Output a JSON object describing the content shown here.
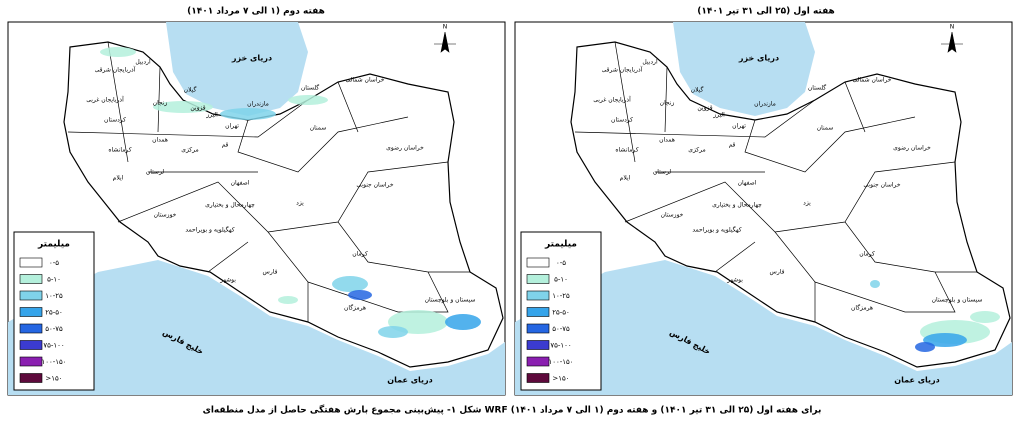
{
  "panels": [
    {
      "title": "هفته دوم (۱ الی ۷ مرداد ۱۴۰۱)"
    },
    {
      "title": "هفته اول (۲۵ الی ۳۱ تیر ۱۴۰۱)"
    }
  ],
  "map_labels": {
    "caspian": "دریای خزر",
    "oman": "دریای عمان",
    "gulf": "خلیج فارس",
    "north": "N"
  },
  "provinces": [
    "آذربایجان شرقی",
    "اردبیل",
    "آذربایجان غربی",
    "زنجان",
    "گیلان",
    "مازندران",
    "گلستان",
    "خراسان شمالی",
    "خراسان رضوی",
    "سمنان",
    "تهران",
    "البرز",
    "قزوین",
    "قم",
    "مرکزی",
    "همدان",
    "کردستان",
    "کرمانشاه",
    "ایلام",
    "لرستان",
    "اصفهان",
    "خوزستان",
    "چهارمحال و بختیاری",
    "کهگیلویه و بویراحمد",
    "بوشهر",
    "فارس",
    "یزد",
    "کرمان",
    "هرمزگان",
    "سیستان و بلوچستان",
    "خراسان جنوبی"
  ],
  "legend": {
    "title": "میلیمتر",
    "classes": [
      {
        "label": "۰-۵",
        "color": "#ffffff"
      },
      {
        "label": "۵-۱۰",
        "color": "#b4f0dc"
      },
      {
        "label": "۱۰-۲۵",
        "color": "#7fd3ea"
      },
      {
        "label": "۲۵-۵۰",
        "color": "#35a4ea"
      },
      {
        "label": "۵۰-۷۵",
        "color": "#2566e2"
      },
      {
        "label": "۷۵-۱۰۰",
        "color": "#3b3bd0"
      },
      {
        "label": "۱۰۰-۱۵۰",
        "color": "#8a1fb0"
      },
      {
        "label": ">۱۵۰",
        "color": "#5e0a3c"
      }
    ]
  },
  "caption": "شکل ۱- پیش‌بینی مجموع بارش هفتگی حاصل از مدل منطقه‌ای WRF برای هفته اول (۲۵ الی ۳۱ تیر ۱۴۰۱) و هفته دوم (۱ الی ۷ مرداد ۱۴۰۱)"
}
